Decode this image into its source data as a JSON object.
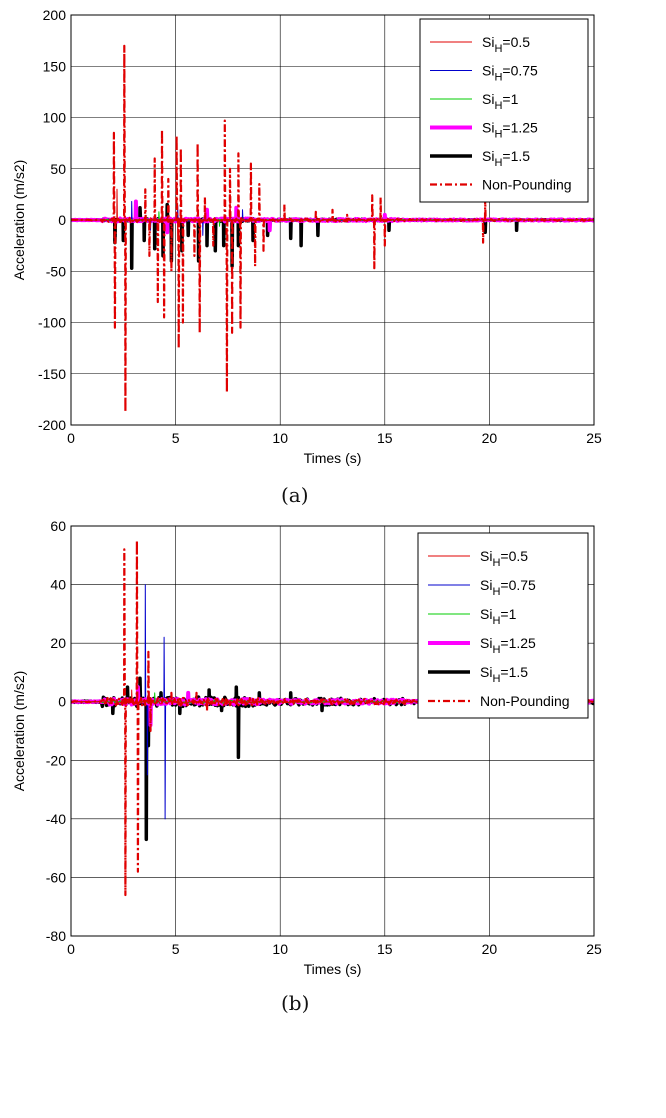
{
  "charts": [
    {
      "caption": "(a)",
      "chart_data": {
        "type": "line",
        "xlabel": "Times (s)",
        "ylabel": "Acceleration (m/s2)",
        "xlim": [
          0,
          25
        ],
        "ylim": [
          -200,
          200
        ],
        "xticks": [
          "0",
          "5",
          "10",
          "15",
          "20",
          "25"
        ],
        "yticks": [
          "200",
          "150",
          "100",
          "50",
          "0",
          "-50",
          "-100",
          "-150",
          "-200"
        ],
        "grid": true,
        "legend_position": "top-right",
        "legend": [
          {
            "main": "Si",
            "sub": "H",
            "suffix": "=0.5",
            "color": "#e00000",
            "style": "solid",
            "width": 1
          },
          {
            "main": "Si",
            "sub": "H",
            "suffix": "=0.75",
            "color": "#0000cc",
            "style": "solid",
            "width": 1
          },
          {
            "main": "Si",
            "sub": "H",
            "suffix": "=1",
            "color": "#00cc00",
            "style": "solid",
            "width": 1
          },
          {
            "main": "Si",
            "sub": "H",
            "suffix": "=1.25",
            "color": "#ff00ff",
            "style": "solid",
            "width": 4
          },
          {
            "main": "Si",
            "sub": "H",
            "suffix": "=1.5",
            "color": "#000000",
            "style": "solid",
            "width": 3.5
          },
          {
            "main": "Non-Pounding",
            "sub": "",
            "suffix": "",
            "color": "#e00000",
            "style": "dashdot",
            "width": 2.2
          }
        ],
        "series": [
          {
            "legend_index": 4,
            "noise": 1.2,
            "spikes": [
              [
                2.1,
                -22
              ],
              [
                2.5,
                -20
              ],
              [
                2.9,
                -47
              ],
              [
                3.3,
                12
              ],
              [
                3.5,
                -20
              ],
              [
                4.0,
                -28
              ],
              [
                4.4,
                -35
              ],
              [
                4.6,
                15
              ],
              [
                4.8,
                -40
              ],
              [
                5.3,
                -30
              ],
              [
                5.6,
                -15
              ],
              [
                6.1,
                -40
              ],
              [
                6.5,
                -25
              ],
              [
                6.9,
                -30
              ],
              [
                7.3,
                -25
              ],
              [
                7.7,
                -45
              ],
              [
                8.0,
                -25
              ],
              [
                8.7,
                -20
              ],
              [
                9.4,
                -15
              ],
              [
                10.5,
                -18
              ],
              [
                11.0,
                -25
              ],
              [
                11.8,
                -15
              ],
              [
                15.2,
                -10
              ],
              [
                19.8,
                -12
              ],
              [
                21.3,
                -10
              ]
            ]
          },
          {
            "legend_index": 3,
            "noise": 1.5,
            "spikes": [
              [
                3.1,
                18
              ],
              [
                4.6,
                -12
              ],
              [
                6.5,
                10
              ],
              [
                7.9,
                12
              ],
              [
                9.5,
                -10
              ],
              [
                15.0,
                5
              ]
            ]
          },
          {
            "legend_index": 1,
            "noise": 1.0,
            "spikes": [
              [
                2.9,
                18
              ],
              [
                3.8,
                -10
              ],
              [
                5.1,
                14
              ],
              [
                6.3,
                -15
              ],
              [
                8.2,
                10
              ]
            ]
          },
          {
            "legend_index": 2,
            "noise": 0.8,
            "spikes": [
              [
                4.2,
                8
              ],
              [
                7.1,
                -6
              ]
            ]
          },
          {
            "legend_index": 0,
            "noise": 1.0,
            "spikes": [
              [
                2.2,
                30
              ],
              [
                5.1,
                -20
              ],
              [
                7.6,
                25
              ]
            ]
          },
          {
            "legend_index": 5,
            "noise": 2.0,
            "spikes": [
              [
                2.05,
                85
              ],
              [
                2.1,
                -105
              ],
              [
                2.55,
                170
              ],
              [
                2.6,
                -187
              ],
              [
                3.55,
                30
              ],
              [
                3.75,
                -35
              ],
              [
                4.0,
                60
              ],
              [
                4.15,
                -80
              ],
              [
                4.35,
                88
              ],
              [
                4.45,
                -95
              ],
              [
                4.65,
                40
              ],
              [
                4.8,
                -50
              ],
              [
                5.05,
                82
              ],
              [
                5.15,
                -125
              ],
              [
                5.25,
                70
              ],
              [
                5.35,
                -100
              ],
              [
                5.9,
                -35
              ],
              [
                6.05,
                75
              ],
              [
                6.15,
                -110
              ],
              [
                6.4,
                22
              ],
              [
                6.8,
                -25
              ],
              [
                7.35,
                97
              ],
              [
                7.45,
                -168
              ],
              [
                7.6,
                50
              ],
              [
                7.7,
                -110
              ],
              [
                8.0,
                65
              ],
              [
                8.1,
                -105
              ],
              [
                8.6,
                55
              ],
              [
                8.8,
                -45
              ],
              [
                9.0,
                35
              ],
              [
                9.2,
                -30
              ],
              [
                10.2,
                15
              ],
              [
                11.7,
                8
              ],
              [
                12.5,
                10
              ],
              [
                13.2,
                5
              ],
              [
                14.4,
                24
              ],
              [
                14.5,
                -47
              ],
              [
                14.8,
                22
              ],
              [
                15.0,
                -25
              ],
              [
                19.7,
                -22
              ],
              [
                19.8,
                20
              ]
            ]
          }
        ]
      }
    },
    {
      "caption": "(b)",
      "chart_data": {
        "type": "line",
        "xlabel": "Times (s)",
        "ylabel": "Acceleration (m/s2)",
        "xlim": [
          0,
          25
        ],
        "ylim": [
          -80,
          60
        ],
        "xticks": [
          "0",
          "5",
          "10",
          "15",
          "20",
          "25"
        ],
        "yticks": [
          "60",
          "40",
          "20",
          "0",
          "-20",
          "-40",
          "-60",
          "-80"
        ],
        "grid": true,
        "legend_position": "top-right",
        "legend": [
          {
            "main": "Si",
            "sub": "H",
            "suffix": "=0.5",
            "color": "#e00000",
            "style": "solid",
            "width": 1
          },
          {
            "main": "Si",
            "sub": "H",
            "suffix": "=0.75",
            "color": "#0000cc",
            "style": "solid",
            "width": 1
          },
          {
            "main": "Si",
            "sub": "H",
            "suffix": "=1",
            "color": "#00cc00",
            "style": "solid",
            "width": 1
          },
          {
            "main": "Si",
            "sub": "H",
            "suffix": "=1.25",
            "color": "#ff00ff",
            "style": "solid",
            "width": 4
          },
          {
            "main": "Si",
            "sub": "H",
            "suffix": "=1.5",
            "color": "#000000",
            "style": "solid",
            "width": 3.5
          },
          {
            "main": "Non-Pounding",
            "sub": "",
            "suffix": "",
            "color": "#e00000",
            "style": "dashdot",
            "width": 2.2
          }
        ],
        "series": [
          {
            "legend_index": 4,
            "noise": 1.6,
            "spikes": [
              [
                2.0,
                -4
              ],
              [
                2.7,
                5
              ],
              [
                3.3,
                8
              ],
              [
                3.6,
                -47
              ],
              [
                3.7,
                -15
              ],
              [
                4.3,
                3
              ],
              [
                5.2,
                -4
              ],
              [
                6.6,
                4
              ],
              [
                7.2,
                -3
              ],
              [
                7.9,
                5
              ],
              [
                8.0,
                -19
              ],
              [
                9.0,
                3
              ],
              [
                10.5,
                3
              ],
              [
                12.0,
                -3
              ]
            ]
          },
          {
            "legend_index": 1,
            "noise": 0.6,
            "spikes": [
              [
                3.55,
                40
              ],
              [
                3.65,
                -25
              ],
              [
                4.45,
                22
              ],
              [
                4.5,
                -40
              ]
            ]
          },
          {
            "legend_index": 3,
            "noise": 1.0,
            "spikes": [
              [
                3.2,
                5
              ],
              [
                3.8,
                -8
              ],
              [
                5.6,
                3
              ]
            ]
          },
          {
            "legend_index": 2,
            "noise": 0.5,
            "spikes": [
              [
                4.0,
                3
              ]
            ]
          },
          {
            "legend_index": 0,
            "noise": 0.8,
            "spikes": [
              [
                2.9,
                4
              ]
            ]
          },
          {
            "legend_index": 5,
            "noise": 1.3,
            "spikes": [
              [
                2.55,
                52
              ],
              [
                2.6,
                -66
              ],
              [
                3.15,
                55
              ],
              [
                3.2,
                -58
              ],
              [
                3.7,
                17
              ],
              [
                3.8,
                -10
              ],
              [
                4.8,
                3
              ],
              [
                6.0,
                3
              ],
              [
                6.5,
                -3
              ]
            ]
          }
        ]
      }
    }
  ]
}
